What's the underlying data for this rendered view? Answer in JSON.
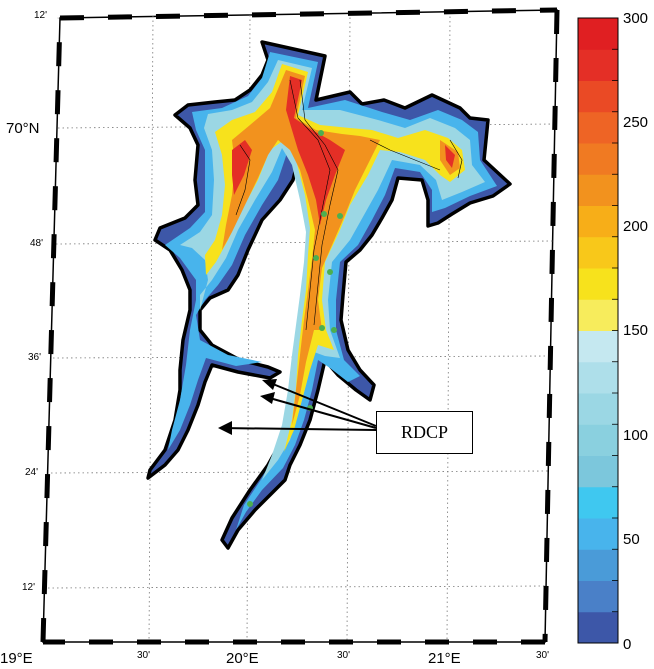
{
  "map": {
    "lat_labels": [
      {
        "text": "12'",
        "lat_min": 12,
        "big": false
      },
      {
        "text": "70°N",
        "lat_min": 0,
        "big": true
      },
      {
        "text": "48'",
        "lat_min": -12,
        "big": false
      },
      {
        "text": "36'",
        "lat_min": -24,
        "big": false
      },
      {
        "text": "24'",
        "lat_min": -36,
        "big": false
      },
      {
        "text": "12'",
        "lat_min": -48,
        "big": false
      }
    ],
    "lon_labels": [
      {
        "text": "19°E",
        "big": true
      },
      {
        "text": "30'",
        "big": false
      },
      {
        "text": "20°E",
        "big": true
      },
      {
        "text": "30'",
        "big": false
      },
      {
        "text": "21°E",
        "big": true
      },
      {
        "text": "30'",
        "big": false
      }
    ],
    "annotation": "RDCP",
    "station_marker_color": "#4caf50"
  },
  "colorbar": {
    "range": [
      0,
      300
    ],
    "labels": [
      "300",
      "250",
      "200",
      "150",
      "100",
      "50",
      "0"
    ],
    "colors": [
      "#3d57a8",
      "#4a80c8",
      "#4a9bd8",
      "#48b4ec",
      "#3fc8f0",
      "#7cc7dc",
      "#8ad0df",
      "#9bd7e4",
      "#aedfea",
      "#c5e8f0",
      "#f7ec5c",
      "#f7e21c",
      "#f8c81a",
      "#f7ae18",
      "#f2921e",
      "#f07a22",
      "#ee6425",
      "#ea4a25",
      "#e42f26",
      "#e01f22"
    ]
  }
}
